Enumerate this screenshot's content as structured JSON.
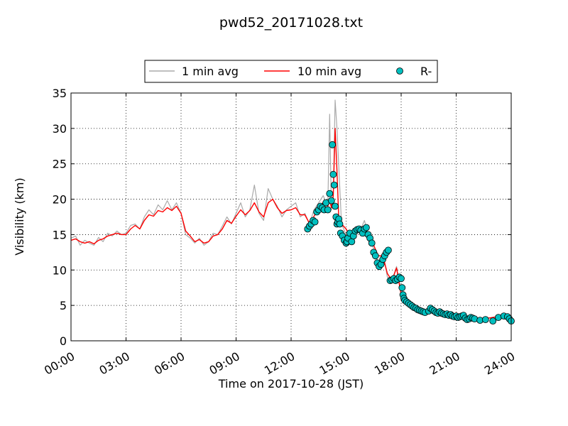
{
  "chart_data": {
    "type": "line",
    "title": "pwd52_20171028.txt",
    "xlabel": "Time on 2017-10-28 (JST)",
    "ylabel": "Visibility (km)",
    "xlim": [
      0,
      24
    ],
    "ylim": [
      0,
      35
    ],
    "x_ticks": [
      0,
      3,
      6,
      9,
      12,
      15,
      18,
      21,
      24
    ],
    "x_tick_labels": [
      "00:00",
      "03:00",
      "06:00",
      "09:00",
      "12:00",
      "15:00",
      "18:00",
      "21:00",
      "24:00"
    ],
    "y_ticks": [
      0,
      5,
      10,
      15,
      20,
      25,
      30,
      35
    ],
    "y_tick_labels": [
      "0",
      "5",
      "10",
      "15",
      "20",
      "25",
      "30",
      "35"
    ],
    "grid": true,
    "legend_position": "top-center",
    "colors": {
      "one_min": "#aaaaaa",
      "ten_min": "#ff0000",
      "marker_fill": "#00bfbf",
      "marker_edge": "#000000"
    },
    "series": [
      {
        "name": "1 min avg",
        "kind": "line",
        "x": [
          0,
          0.25,
          0.5,
          0.75,
          1,
          1.25,
          1.5,
          1.75,
          2,
          2.25,
          2.5,
          2.75,
          3,
          3.25,
          3.5,
          3.75,
          4,
          4.25,
          4.5,
          4.75,
          5,
          5.25,
          5.5,
          5.75,
          6,
          6.25,
          6.5,
          6.75,
          7,
          7.25,
          7.5,
          7.75,
          8,
          8.25,
          8.5,
          8.75,
          9,
          9.25,
          9.5,
          9.75,
          10,
          10.25,
          10.5,
          10.75,
          11,
          11.25,
          11.5,
          11.75,
          12,
          12.25,
          12.5,
          12.75,
          13,
          13.25,
          13.5,
          13.75,
          14,
          14.1,
          14.2,
          14.3,
          14.4,
          14.5,
          14.75,
          15,
          15.25,
          15.5,
          15.75,
          16,
          16.25,
          16.5,
          16.75,
          17,
          17.25,
          17.5,
          17.75,
          18,
          18.25,
          18.5,
          18.75,
          19,
          19.25,
          19.5,
          19.75,
          20,
          20.5,
          21,
          21.5,
          22,
          22.5,
          23,
          23.5,
          24
        ],
        "y": [
          14.5,
          14.8,
          13.5,
          14.2,
          13.8,
          13.5,
          14.6,
          14.0,
          15.2,
          14.8,
          15.5,
          15.0,
          15.2,
          16.3,
          16.5,
          15.8,
          17.5,
          18.5,
          17.8,
          19.2,
          18.5,
          19.8,
          18.5,
          19.5,
          18.0,
          15.0,
          14.5,
          13.8,
          14.5,
          13.5,
          14.0,
          15.2,
          15.0,
          16.2,
          17.5,
          16.5,
          18.0,
          19.5,
          17.5,
          18.5,
          22.0,
          18.0,
          17.0,
          21.5,
          20.0,
          19.0,
          17.5,
          18.5,
          19.0,
          19.5,
          17.5,
          18.0,
          16.5,
          18.5,
          19.5,
          20.5,
          19.0,
          32.0,
          18.5,
          21.0,
          34.0,
          30.0,
          16.5,
          15.0,
          14.0,
          16.0,
          15.5,
          17.0,
          14.5,
          13.0,
          11.0,
          12.5,
          9.0,
          8.5,
          10.5,
          7.0,
          5.5,
          5.0,
          4.8,
          4.5,
          4.2,
          4.0,
          4.6,
          4.2,
          3.8,
          3.6,
          3.4,
          3.2,
          3.1,
          3.3,
          3.5,
          2.8
        ]
      },
      {
        "name": "10 min avg",
        "kind": "line",
        "x": [
          0,
          0.25,
          0.5,
          0.75,
          1,
          1.25,
          1.5,
          1.75,
          2,
          2.25,
          2.5,
          2.75,
          3,
          3.25,
          3.5,
          3.75,
          4,
          4.25,
          4.5,
          4.75,
          5,
          5.25,
          5.5,
          5.75,
          6,
          6.25,
          6.5,
          6.75,
          7,
          7.25,
          7.5,
          7.75,
          8,
          8.25,
          8.5,
          8.75,
          9,
          9.25,
          9.5,
          9.75,
          10,
          10.25,
          10.5,
          10.75,
          11,
          11.25,
          11.5,
          11.75,
          12,
          12.25,
          12.5,
          12.75,
          13,
          13.25,
          13.5,
          13.75,
          14,
          14.1,
          14.2,
          14.3,
          14.4,
          14.5,
          14.6,
          14.75,
          15,
          15.25,
          15.5,
          15.75,
          16,
          16.25,
          16.5,
          16.75,
          17,
          17.25,
          17.5,
          17.75,
          18,
          18.25,
          18.5,
          18.75,
          19,
          19.25,
          19.5,
          19.75,
          20,
          20.5,
          21,
          21.5,
          22,
          22.5,
          23,
          23.5,
          24
        ],
        "y": [
          14.2,
          14.4,
          14.0,
          13.8,
          14.0,
          13.7,
          14.2,
          14.4,
          14.8,
          15.0,
          15.2,
          15.0,
          15.0,
          15.8,
          16.3,
          15.8,
          17.0,
          17.8,
          17.6,
          18.4,
          18.2,
          18.8,
          18.4,
          19.0,
          18.0,
          15.5,
          14.8,
          14.0,
          14.3,
          13.8,
          14.0,
          14.8,
          15.0,
          15.8,
          17.0,
          16.6,
          17.6,
          18.5,
          17.8,
          18.4,
          19.5,
          18.2,
          17.5,
          19.5,
          20.0,
          18.8,
          18.0,
          18.4,
          18.5,
          18.8,
          17.8,
          17.8,
          16.6,
          17.6,
          18.6,
          19.6,
          19.0,
          19.8,
          18.8,
          20.5,
          30.0,
          24.0,
          17.0,
          16.5,
          15.8,
          14.5,
          15.2,
          15.6,
          15.8,
          15.0,
          13.5,
          12.0,
          12.0,
          9.5,
          8.5,
          10.3,
          6.5,
          5.5,
          5.0,
          4.8,
          4.3,
          4.0,
          4.3,
          4.2,
          3.9,
          3.7,
          3.4,
          3.3,
          3.2,
          3.1,
          3.3,
          3.5,
          2.9
        ]
      },
      {
        "name": "R-",
        "kind": "scatter",
        "x": [
          12.9,
          13.0,
          13.1,
          13.2,
          13.3,
          13.4,
          13.5,
          13.6,
          13.7,
          13.8,
          13.9,
          14.0,
          14.1,
          14.2,
          14.25,
          14.3,
          14.35,
          14.4,
          14.45,
          14.5,
          14.55,
          14.6,
          14.65,
          14.7,
          14.8,
          14.9,
          15.0,
          15.05,
          15.1,
          15.2,
          15.3,
          15.4,
          15.5,
          15.6,
          15.7,
          15.8,
          15.9,
          16.0,
          16.1,
          16.2,
          16.3,
          16.4,
          16.5,
          16.6,
          16.7,
          16.8,
          16.9,
          17.0,
          17.1,
          17.2,
          17.3,
          17.4,
          17.5,
          17.6,
          17.7,
          17.8,
          17.9,
          18.0,
          18.05,
          18.1,
          18.15,
          18.2,
          18.3,
          18.4,
          18.5,
          18.6,
          18.7,
          18.8,
          18.9,
          19.0,
          19.1,
          19.2,
          19.3,
          19.5,
          19.6,
          19.7,
          19.8,
          19.9,
          20.0,
          20.1,
          20.2,
          20.3,
          20.4,
          20.5,
          20.6,
          20.7,
          20.8,
          20.9,
          21.0,
          21.1,
          21.2,
          21.3,
          21.4,
          21.5,
          21.6,
          21.7,
          21.8,
          21.9,
          22.0,
          22.3,
          22.6,
          23.0,
          23.3,
          23.6,
          23.8,
          23.9,
          24.0
        ],
        "y": [
          15.8,
          16.2,
          16.5,
          17.0,
          16.8,
          18.2,
          18.5,
          19.0,
          18.8,
          18.5,
          19.5,
          18.5,
          20.8,
          19.8,
          27.7,
          23.5,
          22.0,
          19.0,
          17.5,
          16.5,
          16.8,
          17.2,
          16.5,
          15.2,
          14.8,
          14.2,
          13.8,
          14.0,
          14.5,
          15.2,
          14.0,
          14.8,
          15.5,
          15.7,
          15.8,
          15.6,
          15.2,
          15.8,
          16.0,
          15.0,
          14.5,
          13.8,
          12.5,
          12.0,
          11.0,
          10.5,
          10.8,
          11.5,
          12.0,
          12.5,
          12.8,
          8.5,
          8.6,
          8.8,
          8.5,
          8.7,
          9.0,
          8.8,
          7.5,
          6.5,
          6.0,
          5.7,
          5.5,
          5.3,
          5.1,
          4.9,
          4.7,
          4.6,
          4.4,
          4.3,
          4.2,
          4.1,
          4.0,
          4.2,
          4.6,
          4.4,
          4.2,
          4.0,
          3.9,
          4.1,
          3.9,
          3.8,
          3.7,
          3.8,
          3.6,
          3.7,
          3.5,
          3.4,
          3.5,
          3.3,
          3.4,
          3.5,
          3.6,
          3.2,
          3.0,
          3.1,
          3.3,
          3.2,
          3.1,
          2.9,
          3.0,
          2.8,
          3.3,
          3.5,
          3.4,
          3.1,
          2.8
        ]
      }
    ]
  }
}
